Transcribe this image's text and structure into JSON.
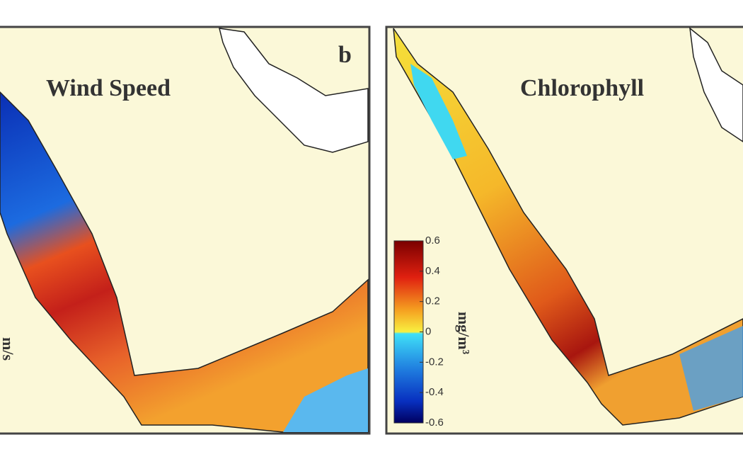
{
  "panels": [
    {
      "label": "b",
      "title": "Wind Speed",
      "unit": "m/s"
    },
    {
      "title": "Chlorophyll",
      "colorbar": {
        "lim": [
          -0.6,
          0.6
        ],
        "ticks": [
          0.6,
          0.4,
          0.2,
          0,
          -0.2,
          -0.4,
          -0.6
        ],
        "unit": "mg/m³"
      }
    }
  ]
}
